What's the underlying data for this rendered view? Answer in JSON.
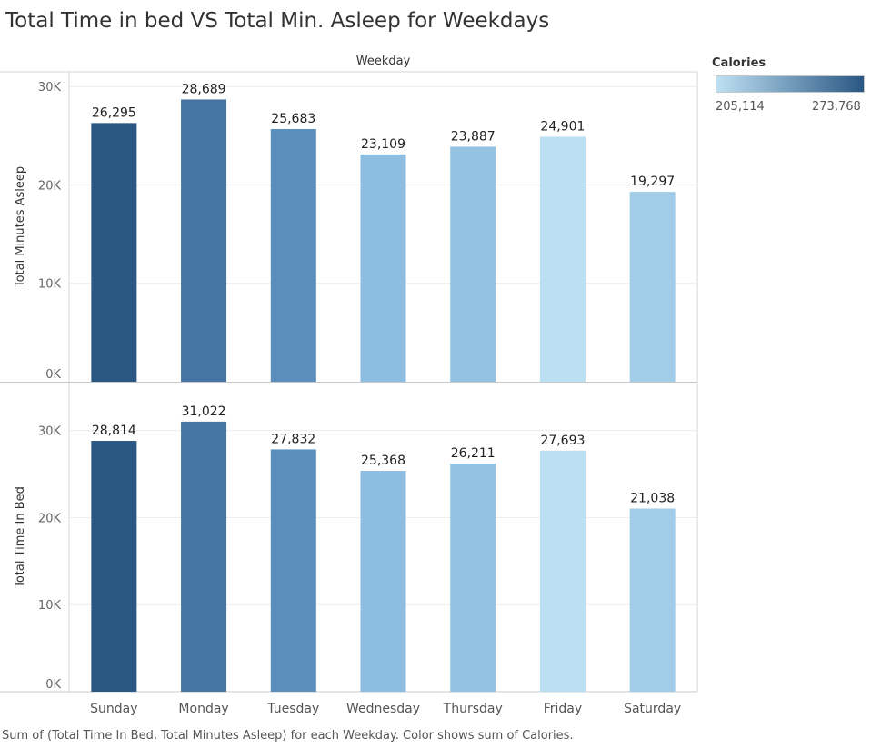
{
  "title": "Total Time in bed VS Total Min. Asleep for Weekdays",
  "column_header": "Weekday",
  "legend": {
    "title": "Calories",
    "min_label": "205,114",
    "max_label": "273,768",
    "color_low": "#bde0f3",
    "color_high": "#2a5783"
  },
  "footer": "Sum of (Total Time In Bed, Total Minutes Asleep) for each Weekday.  Color shows sum of Calories.",
  "chart_data": {
    "type": "bar",
    "categories": [
      "Sunday",
      "Monday",
      "Tuesday",
      "Wednesday",
      "Thursday",
      "Friday",
      "Saturday"
    ],
    "bar_colors": [
      "#2a5783",
      "#4775a3",
      "#5b8fbc",
      "#8dbde0",
      "#93c2e2",
      "#bbdff3",
      "#a2cde9"
    ],
    "series": [
      {
        "name": "Total Minutes Asleep",
        "axis_title": "Total Minutes Asleep",
        "values": [
          26295,
          28689,
          25683,
          23109,
          23887,
          24901,
          19297
        ],
        "value_labels": [
          "26,295",
          "28,689",
          "25,683",
          "23,109",
          "23,887",
          "24,901",
          "19,297"
        ],
        "ylim": [
          0,
          31500
        ],
        "ticks": [
          0,
          10000,
          20000,
          30000
        ],
        "tick_labels": [
          "0K",
          "10K",
          "20K",
          "30K"
        ]
      },
      {
        "name": "Total Time In Bed",
        "axis_title": "Total Time In Bed",
        "values": [
          28814,
          31022,
          27832,
          25368,
          26211,
          27693,
          21038
        ],
        "value_labels": [
          "28,814",
          "31,022",
          "27,832",
          "25,368",
          "26,211",
          "27,693",
          "21,038"
        ],
        "ylim": [
          0,
          35500
        ],
        "ticks": [
          0,
          10000,
          20000,
          30000
        ],
        "tick_labels": [
          "0K",
          "10K",
          "20K",
          "30K"
        ]
      }
    ],
    "grid": true,
    "legend_position": "top-right"
  }
}
